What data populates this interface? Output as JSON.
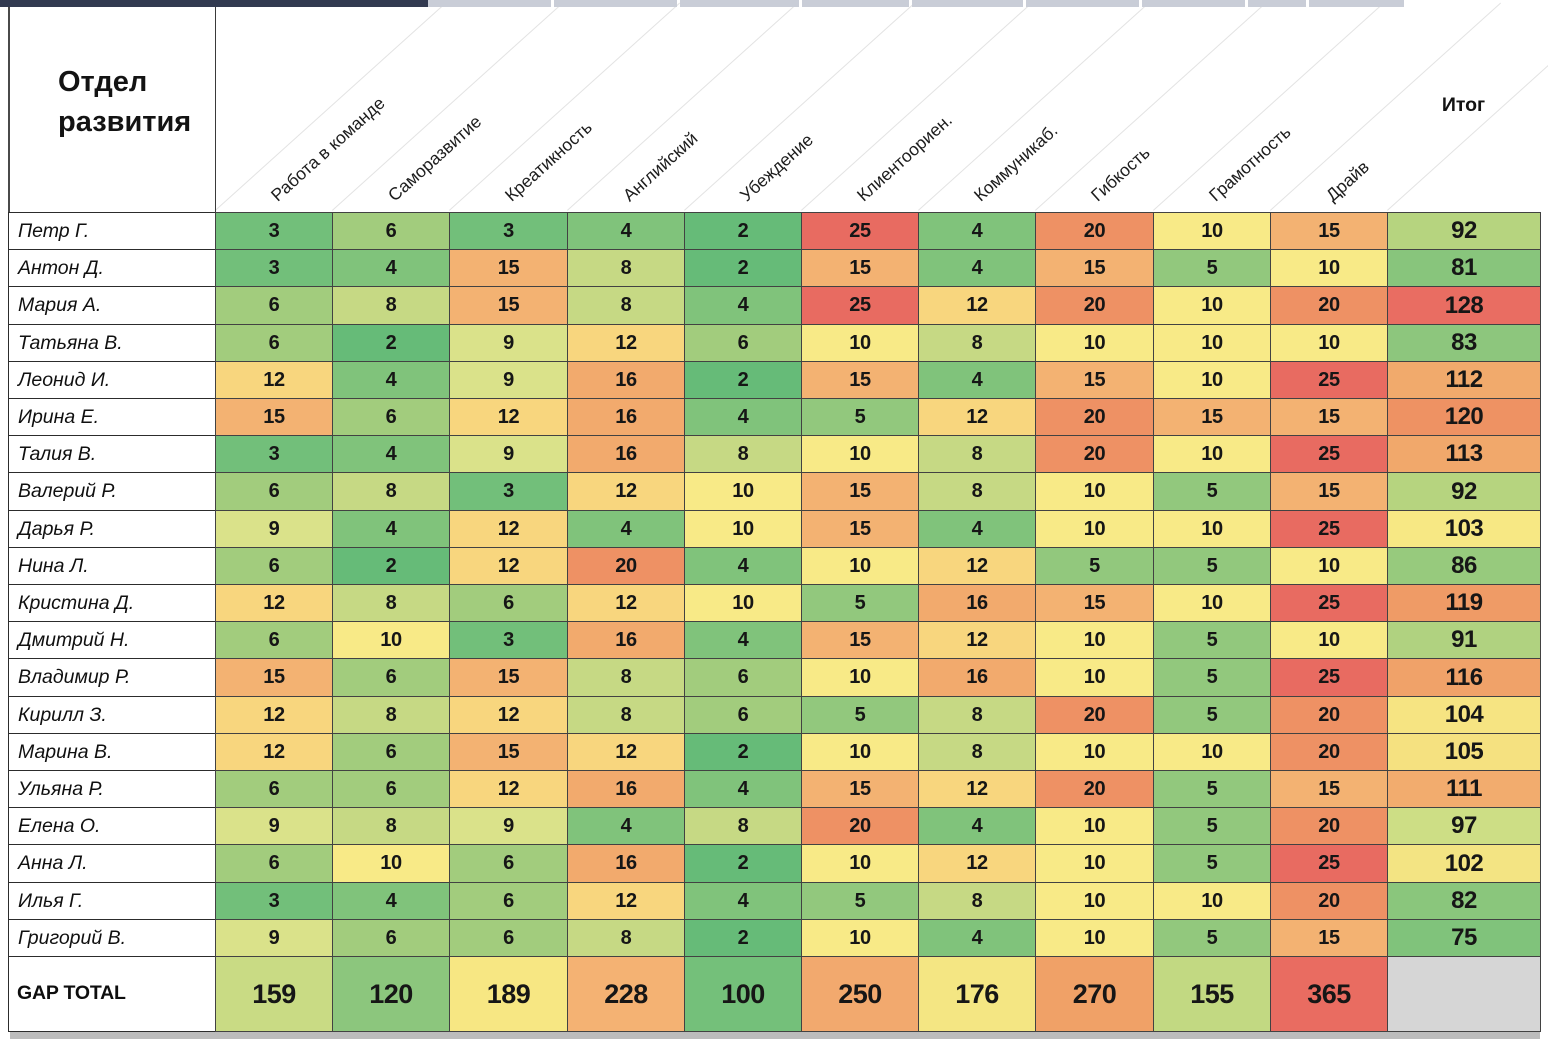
{
  "title": "Отдел развития",
  "total_header": "Итог",
  "gap_label": "GAP TOTAL",
  "chart_data": {
    "type": "heatmap",
    "title": "Отдел развития",
    "categories": [
      "Работа в команде",
      "Саморазвитие",
      "Креатикность",
      "Английский",
      "Убеждение",
      "Клиентоориен.",
      "Коммуникаб.",
      "Гибкость",
      "Грамотность",
      "Драйв"
    ],
    "row_total_label": "Итог",
    "column_totals_label": "GAP TOTAL",
    "rows": [
      {
        "name": "Петр Г.",
        "values": [
          3,
          6,
          3,
          4,
          2,
          25,
          4,
          20,
          10,
          15
        ],
        "total": 92
      },
      {
        "name": "Антон Д.",
        "values": [
          3,
          4,
          15,
          8,
          2,
          15,
          4,
          15,
          5,
          10
        ],
        "total": 81
      },
      {
        "name": "Мария А.",
        "values": [
          6,
          8,
          15,
          8,
          4,
          25,
          12,
          20,
          10,
          20
        ],
        "total": 128
      },
      {
        "name": "Татьяна В.",
        "values": [
          6,
          2,
          9,
          12,
          6,
          10,
          8,
          10,
          10,
          10
        ],
        "total": 83
      },
      {
        "name": "Леонид И.",
        "values": [
          12,
          4,
          9,
          16,
          2,
          15,
          4,
          15,
          10,
          25
        ],
        "total": 112
      },
      {
        "name": "Ирина Е.",
        "values": [
          15,
          6,
          12,
          16,
          4,
          5,
          12,
          20,
          15,
          15
        ],
        "total": 120
      },
      {
        "name": "Талия В.",
        "values": [
          3,
          4,
          9,
          16,
          8,
          10,
          8,
          20,
          10,
          25
        ],
        "total": 113
      },
      {
        "name": "Валерий Р.",
        "values": [
          6,
          8,
          3,
          12,
          10,
          15,
          8,
          10,
          5,
          15
        ],
        "total": 92
      },
      {
        "name": "Дарья Р.",
        "values": [
          9,
          4,
          12,
          4,
          10,
          15,
          4,
          10,
          10,
          25
        ],
        "total": 103
      },
      {
        "name": "Нина Л.",
        "values": [
          6,
          2,
          12,
          20,
          4,
          10,
          12,
          5,
          5,
          10
        ],
        "total": 86
      },
      {
        "name": "Кристина Д.",
        "values": [
          12,
          8,
          6,
          12,
          10,
          5,
          16,
          15,
          10,
          25
        ],
        "total": 119
      },
      {
        "name": "Дмитрий Н.",
        "values": [
          6,
          10,
          3,
          16,
          4,
          15,
          12,
          10,
          5,
          10
        ],
        "total": 91
      },
      {
        "name": "Владимир Р.",
        "values": [
          15,
          6,
          15,
          8,
          6,
          10,
          16,
          10,
          5,
          25
        ],
        "total": 116
      },
      {
        "name": "Кирилл З.",
        "values": [
          12,
          8,
          12,
          8,
          6,
          5,
          8,
          20,
          5,
          20
        ],
        "total": 104
      },
      {
        "name": "Марина В.",
        "values": [
          12,
          6,
          15,
          12,
          2,
          10,
          8,
          10,
          10,
          20
        ],
        "total": 105
      },
      {
        "name": "Ульяна Р.",
        "values": [
          6,
          6,
          12,
          16,
          4,
          15,
          12,
          20,
          5,
          15
        ],
        "total": 111
      },
      {
        "name": "Елена О.",
        "values": [
          9,
          8,
          9,
          4,
          8,
          20,
          4,
          10,
          5,
          20
        ],
        "total": 97
      },
      {
        "name": "Анна Л.",
        "values": [
          6,
          10,
          6,
          16,
          2,
          10,
          12,
          10,
          5,
          25
        ],
        "total": 102
      },
      {
        "name": "Илья Г.",
        "values": [
          3,
          4,
          6,
          12,
          4,
          5,
          8,
          10,
          10,
          20
        ],
        "total": 82
      },
      {
        "name": "Григорий В.",
        "values": [
          9,
          6,
          6,
          8,
          2,
          10,
          4,
          10,
          5,
          15
        ],
        "total": 75
      }
    ],
    "column_totals": [
      159,
      120,
      189,
      228,
      100,
      250,
      176,
      270,
      155,
      365
    ]
  },
  "colors": {
    "value_scale": {
      "2": "#66bb78",
      "3": "#72bf7a",
      "4": "#80c37b",
      "5": "#92c87d",
      "6": "#a2cc7d",
      "8": "#c6d984",
      "9": "#dae28a",
      "10": "#f8ea87",
      "12": "#f8d67e",
      "15": "#f3b272",
      "16": "#f2aa6d",
      "20": "#ee9164",
      "25": "#e86b61"
    },
    "total_scale": {
      "75": "#80c37b",
      "81": "#88c57c",
      "82": "#8ac67c",
      "83": "#8dc67d",
      "86": "#97ca7d",
      "91": "#b0d280",
      "92": "#b6d47f",
      "97": "#cdde85",
      "102": "#f3e483",
      "103": "#f7e884",
      "104": "#f6e482",
      "105": "#f5e180",
      "111": "#f2ac6e",
      "112": "#f1aa6c",
      "113": "#f1a86b",
      "116": "#f0a269",
      "119": "#ef9b66",
      "120": "#ee9263",
      "128": "#e96d62"
    },
    "gap_scale": {
      "100": "#74c07a",
      "120": "#8cc67d",
      "155": "#c2d982",
      "159": "#c9db84",
      "176": "#f4e683",
      "189": "#f7e783",
      "228": "#f4b273",
      "250": "#f2a96e",
      "270": "#f0a167",
      "365": "#e96c61"
    },
    "empty_total": "#d6d6d6",
    "topbar_dark": "#323a50",
    "topbar_light": "#c9cdd7",
    "diag_line": "#e3e3e3",
    "shadow": "#ababab"
  }
}
